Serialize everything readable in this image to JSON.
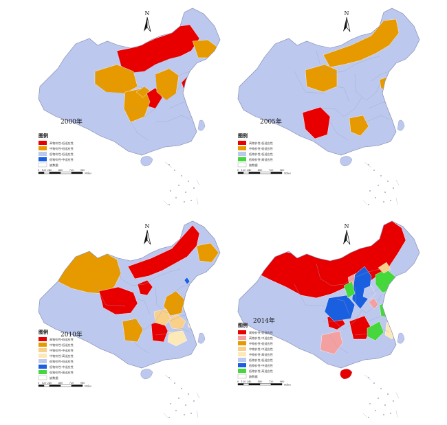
{
  "colors": {
    "red": "#e80000",
    "orange": "#e69a00",
    "pink": "#f4a0a0",
    "light_orange": "#f8d08a",
    "pale_yellow": "#fde9b8",
    "lavender": "#bcc8ee",
    "blue": "#1a5fe0",
    "green": "#44d83a",
    "white": "#ffffff",
    "boundary": "#9aa3c0"
  },
  "north_label": "N",
  "scale_ticks": [
    "0",
    "120",
    "240",
    "480",
    "720",
    "960"
  ],
  "scale_unit": "Miles",
  "panels": [
    {
      "year_label": "2000年",
      "legend_title": "图例",
      "legend": [
        {
          "color": "red",
          "label": "高物价性-低适应性"
        },
        {
          "color": "orange",
          "label": "中物价性-低适应性"
        },
        {
          "color": "lavender",
          "label": "低物价性-低适应性"
        },
        {
          "color": "blue",
          "label": "低物价性-中适应性"
        },
        {
          "color": "white",
          "label": "缺数据"
        }
      ]
    },
    {
      "year_label": "2005年",
      "legend_title": "图例",
      "legend": [
        {
          "color": "red",
          "label": "高物价性-低适应性"
        },
        {
          "color": "orange",
          "label": "中物价性-低适应性"
        },
        {
          "color": "lavender",
          "label": "低物价性-低适应性"
        },
        {
          "color": "green",
          "label": "低物价性-高适应性"
        },
        {
          "color": "white",
          "label": "缺数据"
        }
      ]
    },
    {
      "year_label": "2010年",
      "legend_title": "图例",
      "legend": [
        {
          "color": "red",
          "label": "高物价性-低适应性"
        },
        {
          "color": "orange",
          "label": "中物价性-低适应性"
        },
        {
          "color": "light_orange",
          "label": "中物价性-中适应性"
        },
        {
          "color": "pale_yellow",
          "label": "中物价性-高适应性"
        },
        {
          "color": "lavender",
          "label": "低物价性-低适应性"
        },
        {
          "color": "blue",
          "label": "低物价性-中适应性"
        },
        {
          "color": "green",
          "label": "低物价性-高适应性"
        },
        {
          "color": "white",
          "label": "缺数据"
        }
      ]
    },
    {
      "year_label": "2014年",
      "legend_title": "图例",
      "legend": [
        {
          "color": "red",
          "label": "高物价性-低适应性"
        },
        {
          "color": "pink",
          "label": "高物价性-中适应性"
        },
        {
          "color": "orange",
          "label": "中物价性-低适应性"
        },
        {
          "color": "light_orange",
          "label": "中物价性-中适应性"
        },
        {
          "color": "pale_yellow",
          "label": "中物价性-高适应性"
        },
        {
          "color": "lavender",
          "label": "低物价性-低适应性"
        },
        {
          "color": "blue",
          "label": "低物价性-中适应性"
        },
        {
          "color": "green",
          "label": "低物价性-高适应性"
        },
        {
          "color": "white",
          "label": "缺数据"
        }
      ]
    }
  ]
}
